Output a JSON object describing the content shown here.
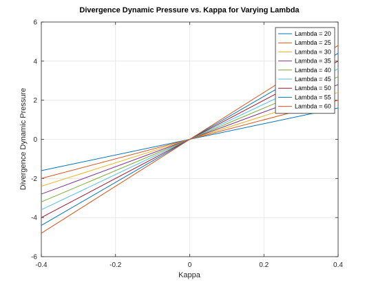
{
  "chart_data": {
    "type": "line",
    "title": "Divergence Dynamic Pressure vs. Kappa for Varying Lambda",
    "xlabel": "Kappa",
    "ylabel": "Divergence Dynamic Pressure",
    "xlim": [
      -0.4,
      0.4
    ],
    "ylim": [
      -6,
      6
    ],
    "x_ticks": [
      -0.4,
      -0.2,
      0,
      0.2,
      0.4
    ],
    "x_tick_labels": [
      "-0.4",
      "-0.2",
      "0",
      "0.2",
      "0.4"
    ],
    "y_ticks": [
      -6,
      -4,
      -2,
      0,
      2,
      4,
      6
    ],
    "y_tick_labels": [
      "-6",
      "-4",
      "-2",
      "0",
      "2",
      "4",
      "6"
    ],
    "grid": true,
    "legend_position": "top-right",
    "x": [
      -0.4,
      0.4
    ],
    "series": [
      {
        "name": "Lambda = 20",
        "values": [
          -1.6,
          1.6
        ],
        "color": "#0072BD"
      },
      {
        "name": "Lambda = 25",
        "values": [
          -2.0,
          2.0
        ],
        "color": "#D95319"
      },
      {
        "name": "Lambda = 30",
        "values": [
          -2.4,
          2.4
        ],
        "color": "#EDB120"
      },
      {
        "name": "Lambda = 35",
        "values": [
          -2.8,
          2.8
        ],
        "color": "#7E2F8E"
      },
      {
        "name": "Lambda = 40",
        "values": [
          -3.2,
          3.2
        ],
        "color": "#77AC30"
      },
      {
        "name": "Lambda = 45",
        "values": [
          -3.6,
          3.6
        ],
        "color": "#4DBEEE"
      },
      {
        "name": "Lambda = 50",
        "values": [
          -4.0,
          4.0
        ],
        "color": "#A2142F"
      },
      {
        "name": "Lambda = 55",
        "values": [
          -4.4,
          4.4
        ],
        "color": "#0072BD"
      },
      {
        "name": "Lambda = 60",
        "values": [
          -4.8,
          4.8
        ],
        "color": "#D95319"
      }
    ]
  }
}
